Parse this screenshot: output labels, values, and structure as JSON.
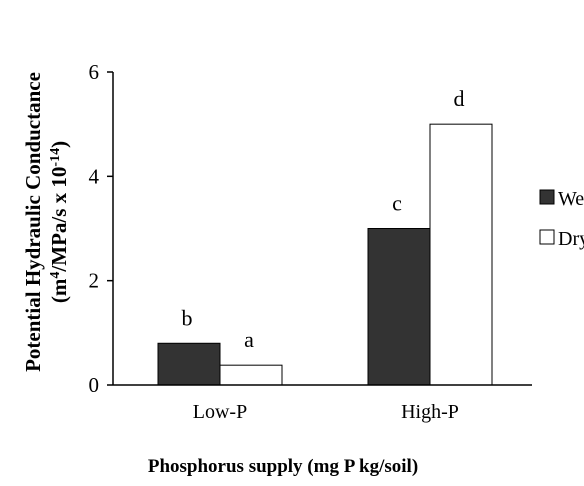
{
  "chart_data": {
    "type": "bar",
    "title": "",
    "xlabel": "Phosphorus supply (mg P kg/soil)",
    "ylabel": {
      "line1": "Potential Hydraulic Conductance",
      "line2_parts": [
        "(m",
        "4",
        "/MPa/s x 10",
        "-14",
        ")"
      ]
    },
    "categories": [
      "Low-P",
      "High-P"
    ],
    "series": [
      {
        "name": "Wet",
        "values": [
          0.8,
          3.0
        ],
        "color": "#333333",
        "labels": [
          "b",
          "c"
        ]
      },
      {
        "name": "Dry",
        "values": [
          0.38,
          5.0
        ],
        "color": "#ffffff",
        "labels": [
          "a",
          "d"
        ]
      }
    ],
    "ylim": [
      0,
      6
    ],
    "yticks": [
      "0",
      "2",
      "4",
      "6"
    ],
    "grid": false,
    "legend_position": "right"
  }
}
